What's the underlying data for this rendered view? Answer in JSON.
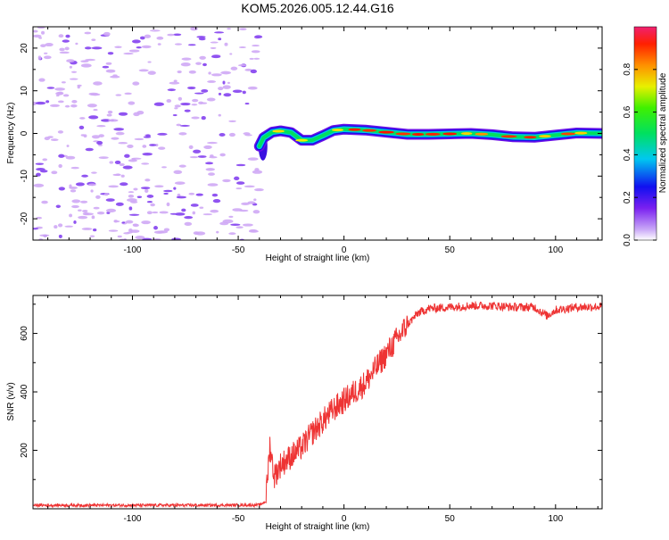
{
  "title": "KOM5.2026.005.12.44.G16",
  "chart_data": [
    {
      "type": "heatmap",
      "xlabel": "Height of straight line (km)",
      "ylabel": "Frequency (Hz)",
      "xlim": [
        -147,
        122
      ],
      "ylim": [
        -25,
        25
      ],
      "xticks": [
        -100,
        -50,
        0,
        50,
        100
      ],
      "yticks": [
        -20,
        -10,
        0,
        10,
        20
      ],
      "colorbar": {
        "label": "Normalized spectral amplitude",
        "ticks": [
          "0.0",
          "0.2",
          "0.4",
          "0.6",
          "0.8"
        ],
        "range": [
          0,
          1
        ]
      },
      "signal_onset_km": -40,
      "noise_region_km": [
        -147,
        -40
      ],
      "ridge_freq_hz": [
        {
          "km": -40,
          "f": -3
        },
        {
          "km": -38,
          "f": -1
        },
        {
          "km": -34,
          "f": 0.3
        },
        {
          "km": -30,
          "f": 0.6
        },
        {
          "km": -25,
          "f": 0.2
        },
        {
          "km": -20,
          "f": -1.6
        },
        {
          "km": -15,
          "f": -1.6
        },
        {
          "km": -10,
          "f": -0.5
        },
        {
          "km": -5,
          "f": 0.7
        },
        {
          "km": 0,
          "f": 1
        },
        {
          "km": 10,
          "f": 0.8
        },
        {
          "km": 20,
          "f": 0.3
        },
        {
          "km": 30,
          "f": -0.2
        },
        {
          "km": 40,
          "f": -0.2
        },
        {
          "km": 50,
          "f": -0.1
        },
        {
          "km": 60,
          "f": 0
        },
        {
          "km": 70,
          "f": -0.3
        },
        {
          "km": 80,
          "f": -0.8
        },
        {
          "km": 90,
          "f": -0.9
        },
        {
          "km": 100,
          "f": -0.4
        },
        {
          "km": 110,
          "f": 0.1
        },
        {
          "km": 122,
          "f": 0
        }
      ]
    },
    {
      "type": "line",
      "xlabel": "Height of straight line (km)",
      "ylabel": "SNR (v/v)",
      "xlim": [
        -147,
        122
      ],
      "ylim": [
        0,
        730
      ],
      "xticks": [
        -100,
        -50,
        0,
        50,
        100
      ],
      "yticks": [
        200,
        400,
        600
      ],
      "series": [
        {
          "name": "SNR",
          "color": "#ee3333",
          "points": [
            {
              "x": -147,
              "y": 12
            },
            {
              "x": -100,
              "y": 12
            },
            {
              "x": -60,
              "y": 12
            },
            {
              "x": -40,
              "y": 13
            },
            {
              "x": -37,
              "y": 25
            },
            {
              "x": -35,
              "y": 220
            },
            {
              "x": -33,
              "y": 110
            },
            {
              "x": -30,
              "y": 150
            },
            {
              "x": -25,
              "y": 180
            },
            {
              "x": -20,
              "y": 210
            },
            {
              "x": -15,
              "y": 260
            },
            {
              "x": -10,
              "y": 300
            },
            {
              "x": -5,
              "y": 340
            },
            {
              "x": 0,
              "y": 370
            },
            {
              "x": 5,
              "y": 400
            },
            {
              "x": 10,
              "y": 430
            },
            {
              "x": 15,
              "y": 480
            },
            {
              "x": 20,
              "y": 530
            },
            {
              "x": 25,
              "y": 580
            },
            {
              "x": 30,
              "y": 630
            },
            {
              "x": 35,
              "y": 670
            },
            {
              "x": 40,
              "y": 685
            },
            {
              "x": 50,
              "y": 690
            },
            {
              "x": 60,
              "y": 695
            },
            {
              "x": 70,
              "y": 695
            },
            {
              "x": 80,
              "y": 690
            },
            {
              "x": 90,
              "y": 690
            },
            {
              "x": 96,
              "y": 660
            },
            {
              "x": 100,
              "y": 680
            },
            {
              "x": 110,
              "y": 690
            },
            {
              "x": 122,
              "y": 692
            }
          ],
          "noise_amplitude": {
            "flat": 5,
            "rise": 45,
            "plateau": 15
          }
        }
      ]
    }
  ],
  "colors": {
    "axis": "#000000",
    "scatter_purple": "#8a4bf0",
    "scatter_light": "#cfa8f5",
    "snr_line": "#ee3333"
  }
}
